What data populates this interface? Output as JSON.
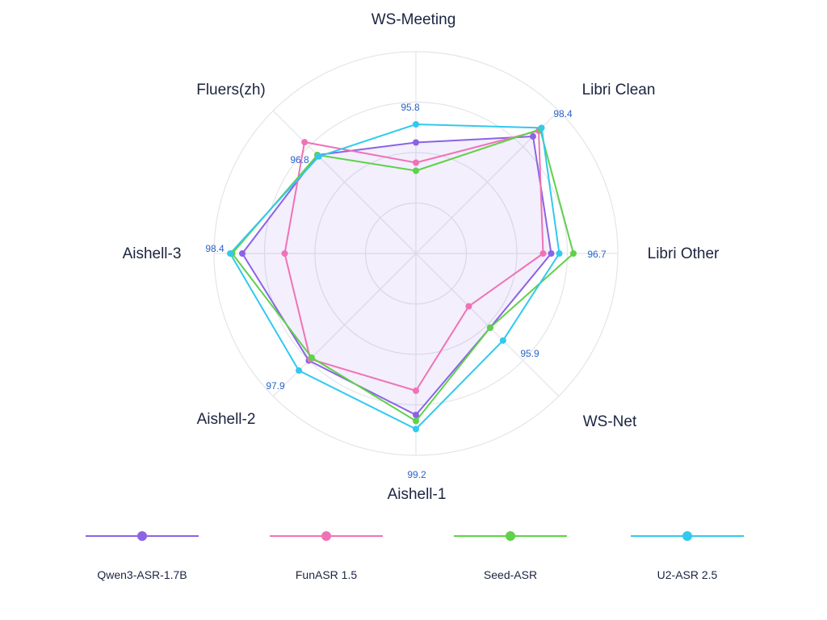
{
  "chart_data": {
    "type": "radar",
    "axes": [
      "WS-Meeting",
      "Libri Clean",
      "Libri Other",
      "WS-Net",
      "Aishell-1",
      "Aishell-2",
      "Aishell-3",
      "Fluers(zh)"
    ],
    "scale_note": "radial scores, per-axis; higher = farther from center",
    "series": [
      {
        "name": "Qwen3-ASR-1.7B",
        "color": "#8a63e6",
        "values": [
          0.55,
          0.82,
          0.67,
          0.52,
          0.8,
          0.75,
          0.86,
          0.69
        ]
      },
      {
        "name": "FunASR 1.5",
        "color": "#f072b6",
        "values": [
          0.45,
          0.86,
          0.63,
          0.37,
          0.68,
          0.74,
          0.65,
          0.78
        ]
      },
      {
        "name": "Seed-ASR",
        "color": "#5fd14a",
        "values": [
          0.41,
          0.87,
          0.78,
          0.52,
          0.83,
          0.73,
          0.91,
          0.69
        ]
      },
      {
        "name": "U2-ASR 2.5",
        "color": "#31c9ef",
        "values": [
          0.64,
          0.88,
          0.71,
          0.61,
          0.87,
          0.82,
          0.92,
          0.68
        ]
      }
    ],
    "value_labels": [
      {
        "axis": "WS-Meeting",
        "text": "95.8"
      },
      {
        "axis": "Libri Clean",
        "text": "98.4"
      },
      {
        "axis": "Libri Other",
        "text": "96.7"
      },
      {
        "axis": "WS-Net",
        "text": "95.9"
      },
      {
        "axis": "Aishell-1",
        "text": "99.2"
      },
      {
        "axis": "Aishell-2",
        "text": "97.9"
      },
      {
        "axis": "Aishell-3",
        "text": "98.4"
      },
      {
        "axis": "Fluers(zh)",
        "text": "96.8"
      }
    ],
    "grid": true,
    "rings": 4,
    "legend_position": "bottom"
  }
}
